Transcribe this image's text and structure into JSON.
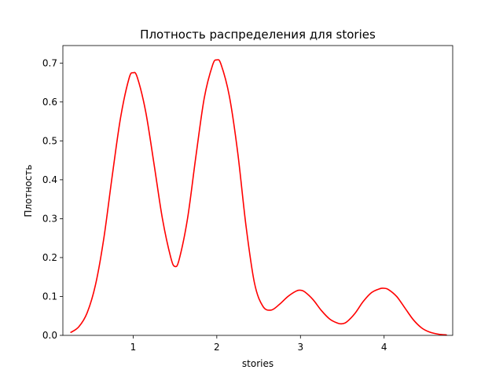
{
  "chart_data": {
    "type": "line",
    "title": "Плотность распределения для stories",
    "xlabel": "stories",
    "ylabel": "Плотность",
    "xlim": [
      0.16,
      4.82
    ],
    "ylim": [
      0,
      0.745
    ],
    "xticks": [
      1,
      2,
      3,
      4
    ],
    "yticks": [
      0.0,
      0.1,
      0.2,
      0.3,
      0.4,
      0.5,
      0.6,
      0.7
    ],
    "ytick_labels": [
      "0.0",
      "0.1",
      "0.2",
      "0.3",
      "0.4",
      "0.5",
      "0.6",
      "0.7"
    ],
    "grid": false,
    "legend": "none",
    "series": [
      {
        "color": "#ff0000",
        "x": [
          0.25,
          0.35,
          0.45,
          0.55,
          0.65,
          0.75,
          0.85,
          0.95,
          1.0,
          1.05,
          1.15,
          1.25,
          1.35,
          1.45,
          1.5,
          1.55,
          1.65,
          1.75,
          1.85,
          1.95,
          2.0,
          2.05,
          2.15,
          2.25,
          2.35,
          2.45,
          2.55,
          2.65,
          2.75,
          2.85,
          2.95,
          3.0,
          3.05,
          3.15,
          3.25,
          3.35,
          3.45,
          3.5,
          3.55,
          3.65,
          3.75,
          3.85,
          3.95,
          4.0,
          4.05,
          4.15,
          4.25,
          4.35,
          4.45,
          4.55,
          4.65,
          4.75
        ],
        "y": [
          0.007,
          0.022,
          0.058,
          0.13,
          0.25,
          0.41,
          0.56,
          0.66,
          0.675,
          0.663,
          0.575,
          0.44,
          0.3,
          0.2,
          0.177,
          0.195,
          0.3,
          0.46,
          0.61,
          0.695,
          0.708,
          0.697,
          0.615,
          0.47,
          0.28,
          0.135,
          0.075,
          0.065,
          0.08,
          0.1,
          0.114,
          0.116,
          0.112,
          0.092,
          0.064,
          0.042,
          0.031,
          0.03,
          0.034,
          0.056,
          0.087,
          0.11,
          0.12,
          0.121,
          0.118,
          0.1,
          0.07,
          0.04,
          0.019,
          0.008,
          0.003,
          0.001
        ]
      }
    ]
  }
}
